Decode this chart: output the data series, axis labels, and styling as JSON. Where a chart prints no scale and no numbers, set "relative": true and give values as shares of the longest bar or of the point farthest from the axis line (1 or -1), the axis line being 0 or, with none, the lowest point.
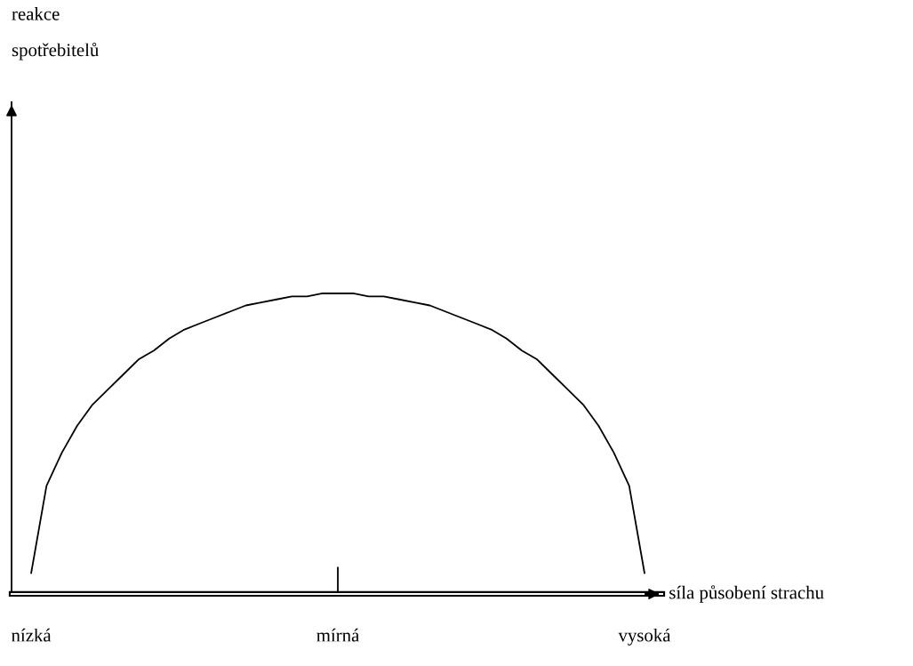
{
  "chart_data": {
    "type": "line",
    "relative": true,
    "xlabel": "síla působení strachu",
    "ylabel": "reakce\nspotřebitelů",
    "categories": [
      "nízká",
      null,
      null,
      null,
      null,
      null,
      null,
      null,
      null,
      null,
      null,
      null,
      null,
      null,
      null,
      null,
      null,
      null,
      null,
      null,
      "mírná",
      null,
      null,
      null,
      null,
      null,
      null,
      null,
      null,
      null,
      null,
      null,
      null,
      null,
      null,
      null,
      null,
      null,
      null,
      null,
      "vysoká"
    ],
    "series": [
      {
        "color": "#000000",
        "values": [
          0.07,
          0.36,
          0.47,
          0.56,
          0.63,
          0.68,
          0.73,
          0.78,
          0.81,
          0.85,
          0.88,
          0.9,
          0.92,
          0.94,
          0.96,
          0.97,
          0.98,
          0.99,
          0.99,
          1.0,
          1.0,
          1.0,
          0.99,
          0.99,
          0.98,
          0.97,
          0.96,
          0.94,
          0.92,
          0.9,
          0.88,
          0.85,
          0.81,
          0.78,
          0.73,
          0.68,
          0.63,
          0.56,
          0.47,
          0.36,
          0.07
        ]
      }
    ],
    "marker": "none",
    "line_style": "solid",
    "grid": false,
    "legend": false
  }
}
